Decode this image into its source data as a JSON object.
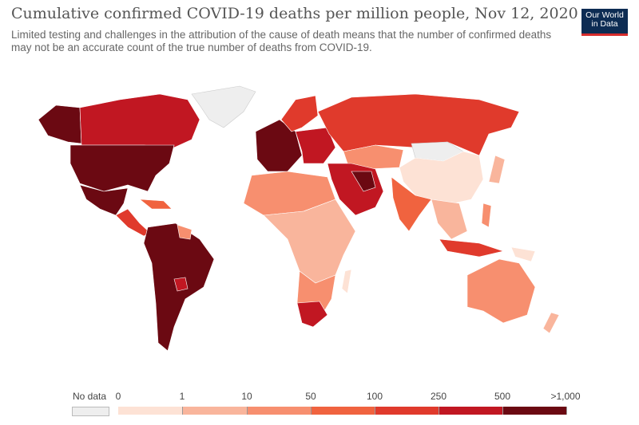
{
  "header": {
    "title": "Cumulative confirmed COVID-19 deaths per million people, Nov 12, 2020",
    "subtitle": "Limited testing and challenges in the attribution of the cause of death means that the number of confirmed deaths may not be an accurate count of the true number of deaths from COVID-19.",
    "logo_line1": "Our World",
    "logo_line2": "in Data"
  },
  "colors": {
    "no_data": "#eeeeee",
    "b0": "#fde2d5",
    "b1": "#f9b59c",
    "b2": "#f78f6f",
    "b3": "#f0633f",
    "b4": "#e03a2c",
    "b5": "#c11722",
    "b6": "#6b0912"
  },
  "legend": {
    "no_data_label": "No data",
    "ticks": [
      "0",
      "1",
      "10",
      "50",
      "100",
      "250",
      "500",
      ">1,000"
    ]
  }
}
